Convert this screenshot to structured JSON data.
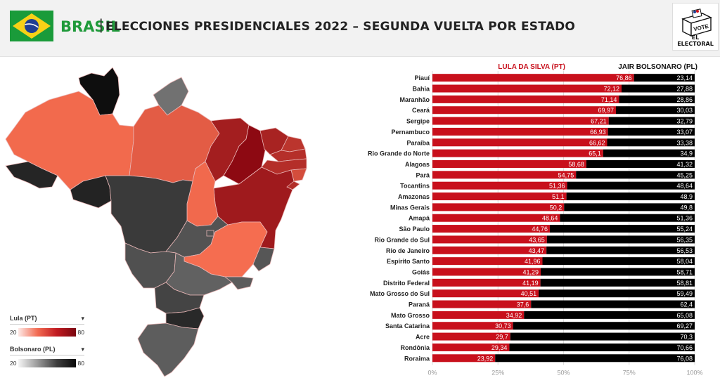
{
  "header": {
    "country": "BRASIL",
    "separator": "|",
    "title": "ELECCIONES PRESIDENCIALES 2022 – SEGUNDA VUELTA POR ESTADO",
    "logo_text": "EL ELECTORAL",
    "logo_vote": "VOTE"
  },
  "legend": {
    "lula_label": "Lula (PT)",
    "bolsonaro_label": "Bolsonaro (PL)",
    "min": "20",
    "max": "80"
  },
  "colors": {
    "lula": "#c8101c",
    "bolsonaro": "#000000",
    "brand_green": "#1f9a3a"
  },
  "chart_data": {
    "type": "bar",
    "orientation": "horizontal",
    "stacked": true,
    "categories": [
      "Piauí",
      "Bahia",
      "Maranhão",
      "Ceará",
      "Sergipe",
      "Pernambuco",
      "Paraíba",
      "Rio Grande do Norte",
      "Alagoas",
      "Pará",
      "Tocantins",
      "Amazonas",
      "Minas Gerais",
      "Amapá",
      "São Paulo",
      "Rio Grande do Sul",
      "Rio de Janeiro",
      "Espírito Santo",
      "Goiás",
      "Distrito Federal",
      "Mato Grosso do Sul",
      "Paraná",
      "Mato Grosso",
      "Santa Catarina",
      "Acre",
      "Rondônia",
      "Roraima"
    ],
    "series": [
      {
        "name": "LULA DA SILVA (PT)",
        "color": "#c8101c",
        "values": [
          76.86,
          72.12,
          71.14,
          69.97,
          67.21,
          66.93,
          66.62,
          65.1,
          58.68,
          54.75,
          51.36,
          51.1,
          50.2,
          48.64,
          44.76,
          43.65,
          43.47,
          41.96,
          41.29,
          41.19,
          40.51,
          37.6,
          34.92,
          30.73,
          29.7,
          29.34,
          23.92
        ],
        "labels": [
          "76,86",
          "72,12",
          "71,14",
          "69,97",
          "67,21",
          "66,93",
          "66,62",
          "65,1",
          "58,68",
          "54,75",
          "51,36",
          "51,1",
          "50,2",
          "48,64",
          "44,76",
          "43,65",
          "43,47",
          "41,96",
          "41,29",
          "41,19",
          "40,51",
          "37,6",
          "34,92",
          "30,73",
          "29,7",
          "29,34",
          "23,92"
        ]
      },
      {
        "name": "JAIR BOLSONARO (PL)",
        "color": "#000000",
        "values": [
          23.14,
          27.88,
          28.86,
          30.03,
          32.79,
          33.07,
          33.38,
          34.9,
          41.32,
          45.25,
          48.64,
          48.9,
          49.8,
          51.36,
          55.24,
          56.35,
          56.53,
          58.04,
          58.71,
          58.81,
          59.49,
          62.4,
          65.08,
          69.27,
          70.3,
          70.66,
          76.08
        ],
        "labels": [
          "23,14",
          "27,88",
          "28,86",
          "30,03",
          "32,79",
          "33,07",
          "33,38",
          "34,9",
          "41,32",
          "45,25",
          "48,64",
          "48,9",
          "49,8",
          "51,36",
          "55,24",
          "56,35",
          "56,53",
          "58,04",
          "58,71",
          "58,81",
          "59,49",
          "62,4",
          "65,08",
          "69,27",
          "70,3",
          "70,66",
          "76,08"
        ]
      }
    ],
    "xlim": [
      0,
      100
    ],
    "xticks": [
      "0%",
      "25%",
      "50%",
      "75%",
      "100%"
    ],
    "grid": true,
    "legend_placement": "top"
  },
  "map_data": {
    "regions": [
      {
        "name": "Roraima",
        "lula": 23.92
      },
      {
        "name": "Amapá",
        "lula": 48.64
      },
      {
        "name": "Amazonas",
        "lula": 51.1
      },
      {
        "name": "Pará",
        "lula": 54.75
      },
      {
        "name": "Maranhão",
        "lula": 71.14
      },
      {
        "name": "Piauí",
        "lula": 76.86
      },
      {
        "name": "Ceará",
        "lula": 69.97
      },
      {
        "name": "Rio Grande do Norte",
        "lula": 65.1
      },
      {
        "name": "Paraíba",
        "lula": 66.62
      },
      {
        "name": "Pernambuco",
        "lula": 66.93
      },
      {
        "name": "Alagoas",
        "lula": 58.68
      },
      {
        "name": "Sergipe",
        "lula": 67.21
      },
      {
        "name": "Bahia",
        "lula": 72.12
      },
      {
        "name": "Tocantins",
        "lula": 51.36
      },
      {
        "name": "Acre",
        "lula": 29.7
      },
      {
        "name": "Rondônia",
        "lula": 29.34
      },
      {
        "name": "Mato Grosso",
        "lula": 34.92
      },
      {
        "name": "Goiás",
        "lula": 41.29
      },
      {
        "name": "Distrito Federal",
        "lula": 41.19
      },
      {
        "name": "Minas Gerais",
        "lula": 50.2
      },
      {
        "name": "Espírito Santo",
        "lula": 41.96
      },
      {
        "name": "Mato Grosso do Sul",
        "lula": 40.51
      },
      {
        "name": "São Paulo",
        "lula": 44.76
      },
      {
        "name": "Rio de Janeiro",
        "lula": 43.47
      },
      {
        "name": "Paraná",
        "lula": 37.6
      },
      {
        "name": "Santa Catarina",
        "lula": 30.73
      },
      {
        "name": "Rio Grande do Sul",
        "lula": 43.65
      }
    ]
  }
}
